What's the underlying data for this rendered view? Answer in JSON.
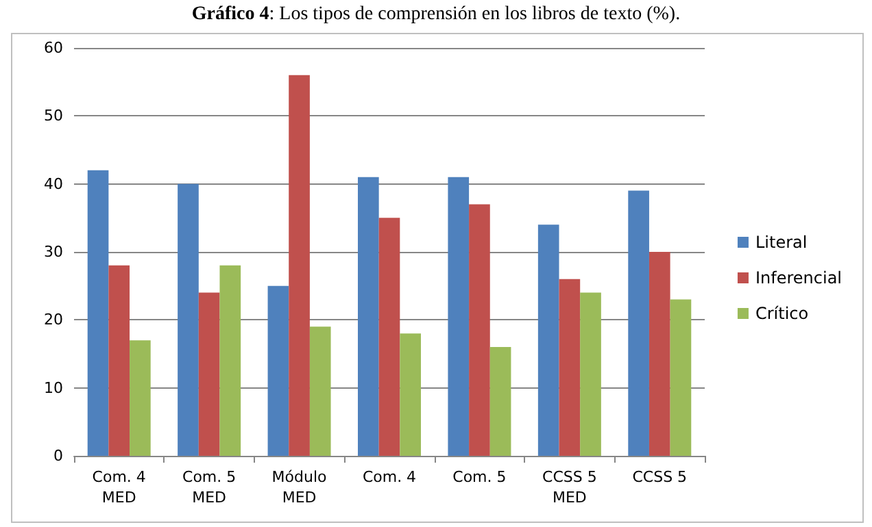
{
  "chart_data": {
    "type": "bar",
    "title": "Gráfico 4: Los tipos de comprensión en los libros de texto (%).",
    "categories": [
      "Com. 4\nMED",
      "Com. 5\nMED",
      "Módulo\nMED",
      "Com. 4",
      "Com. 5",
      "CCSS 5\nMED",
      "CCSS 5"
    ],
    "series": [
      {
        "name": "Literal",
        "color": "#4f81bd",
        "values": [
          42,
          40,
          25,
          41,
          41,
          34,
          39
        ]
      },
      {
        "name": "Inferencial",
        "color": "#c0504d",
        "values": [
          28,
          24,
          56,
          35,
          37,
          26,
          30
        ]
      },
      {
        "name": "Crítico",
        "color": "#9bbb59",
        "values": [
          17,
          28,
          19,
          18,
          16,
          24,
          23
        ]
      }
    ],
    "ylim": [
      0,
      60
    ],
    "yticks": [
      0,
      10,
      20,
      30,
      40,
      50,
      60
    ],
    "grid": "y",
    "legend": "right"
  }
}
